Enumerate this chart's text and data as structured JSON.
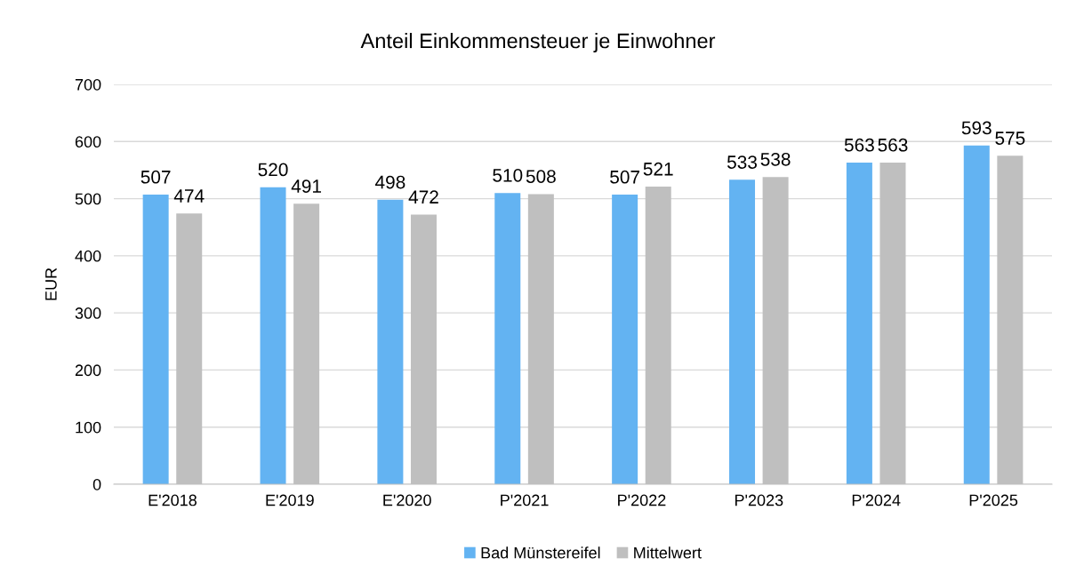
{
  "chart_data": {
    "type": "bar",
    "title": "Anteil Einkommensteuer je Einwohner",
    "ylabel": "EUR",
    "categories": [
      "E'2018",
      "E'2019",
      "E'2020",
      "P'2021",
      "P'2022",
      "P'2023",
      "P'2024",
      "P'2025"
    ],
    "series": [
      {
        "name": "Bad Münstereifel",
        "color": "#63b3f2",
        "values": [
          507,
          520,
          498,
          510,
          507,
          533,
          563,
          593
        ]
      },
      {
        "name": "Mittelwert",
        "color": "#bfbfbf",
        "values": [
          474,
          491,
          472,
          508,
          521,
          538,
          563,
          575
        ]
      }
    ],
    "ylim": [
      0,
      700
    ],
    "yticks": [
      0,
      100,
      200,
      300,
      400,
      500,
      600,
      700
    ],
    "grid": "y",
    "legend": "bottom",
    "data_labels": true
  }
}
